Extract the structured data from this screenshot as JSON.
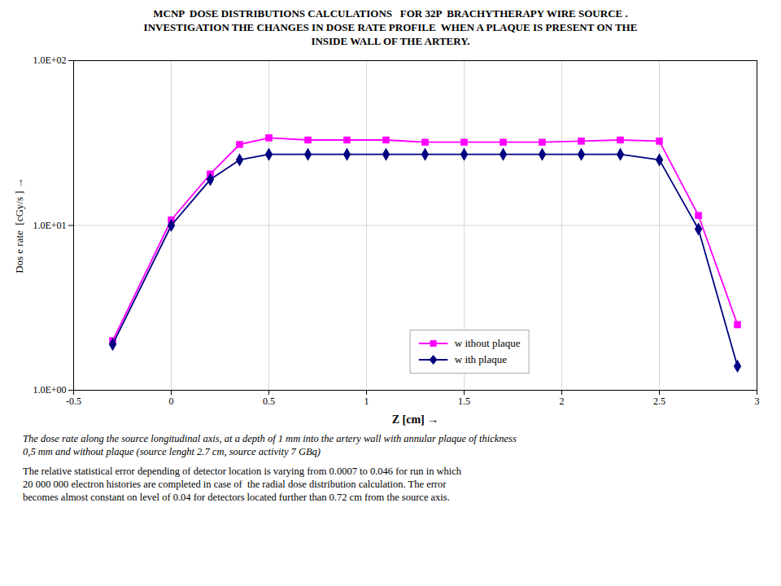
{
  "chart_data": {
    "type": "line",
    "title": "MCNP  DOSE DISTRIBUTIONS CALCULATIONS   FOR 32P  BRACHYTHERAPY WIRE SOURCE .\nINVESTIGATION THE CHANGES IN DOSE RATE PROFILE  WHEN A PLAQUE IS PRESENT ON THE\nINSIDE WALL OF THE ARTERY.",
    "xlabel": "Z [cm]",
    "ylabel": "Dos e rate  [cGy/s ]",
    "log": "y",
    "grid": true,
    "legend": "lower center",
    "xlim": [
      -0.5,
      3.0
    ],
    "ylim": [
      1.0,
      100.0
    ],
    "xticks": [
      -0.5,
      0,
      0.5,
      1,
      1.5,
      2,
      2.5,
      3
    ],
    "yticks": [
      {
        "value": 1.0,
        "label": "1.0E+00"
      },
      {
        "value": 10.0,
        "label": "1.0E+01"
      },
      {
        "value": 100.0,
        "label": "1.0E+02"
      }
    ],
    "x": [
      -0.3,
      0.0,
      0.2,
      0.35,
      0.5,
      0.7,
      0.9,
      1.1,
      1.3,
      1.5,
      1.7,
      1.9,
      2.1,
      2.3,
      2.5,
      2.7,
      2.9
    ],
    "series": [
      {
        "name": "w ithout plaque",
        "color": "#ff00ff",
        "marker": "square",
        "values": [
          2.0,
          10.8,
          20.5,
          31.0,
          34.0,
          33.0,
          33.0,
          33.0,
          32.0,
          32.0,
          32.0,
          32.0,
          32.5,
          33.0,
          32.5,
          11.5,
          2.5
        ]
      },
      {
        "name": "w ith plaque",
        "color": "#000080",
        "marker": "diamond",
        "values": [
          1.9,
          10.0,
          19.0,
          25.0,
          27.0,
          27.0,
          27.0,
          27.0,
          27.0,
          27.0,
          27.0,
          27.0,
          27.0,
          27.0,
          25.0,
          9.5,
          1.4
        ]
      }
    ],
    "annotations": [
      "The dose rate along the source longitudinal axis, at a depth of 1 mm into the artery wall with annular plaque of thickness\n0,5 mm and without plaque (source lenght 2.7 cm, source activity 7 GBq)",
      "The relative statistical error depending of detector location is varying from 0.0007 to 0.046 for run in which\n20 000 000 electron histories are completed in case of  the radial dose distribution calculation. The error\nbecomes almost constant on level of 0.04 for detectors located further than 0.72 cm from the source axis."
    ]
  }
}
